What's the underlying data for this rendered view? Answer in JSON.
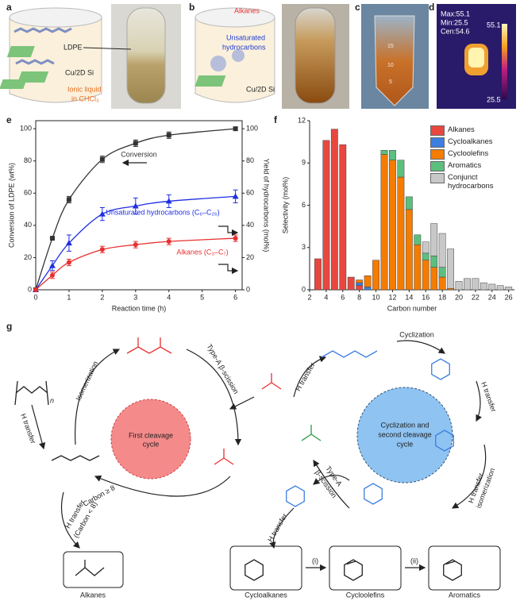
{
  "panels": {
    "a": {
      "letter": "a",
      "labels": [
        "LDPE",
        "Cu/2D Si"
      ],
      "ionic": [
        "Ionic liquid",
        "in CHCl₃"
      ]
    },
    "b": {
      "letter": "b",
      "alkanes": "Alkanes",
      "unsat": [
        "Unsaturated",
        "hydrocarbons"
      ],
      "cat": "Cu/2D Si"
    },
    "c": {
      "letter": "c",
      "marks": [
        "15",
        "10",
        "5"
      ]
    },
    "d": {
      "letter": "d",
      "readout": [
        "Max:55.1",
        "Min:25.5",
        "Cen:54.6"
      ],
      "scale": [
        "55.1",
        "25.5"
      ]
    },
    "e": {
      "letter": "e"
    },
    "f": {
      "letter": "f"
    }
  },
  "chart_data": [
    {
      "type": "line",
      "xlabel": "Reaction time (h)",
      "ylabel": "Conversion of LDPE (wt%)",
      "y2label": "Yield of hydrocarbons (mol%)",
      "x": [
        0,
        0.5,
        1,
        2,
        3,
        4,
        6
      ],
      "xlim": [
        0,
        6.2
      ],
      "xticks": [
        0,
        1,
        2,
        3,
        4,
        5,
        6
      ],
      "ylim": [
        0,
        105
      ],
      "yticks": [
        0,
        20,
        40,
        60,
        80,
        100
      ],
      "y2lim": [
        0,
        105
      ],
      "y2ticks": [
        0,
        20,
        40,
        60,
        80,
        100
      ],
      "series": [
        {
          "name": "Conversion",
          "color": "#333333",
          "marker": "square",
          "values": [
            0,
            32,
            56,
            81,
            91,
            96,
            100
          ],
          "errors": [
            0,
            1,
            2,
            2,
            2,
            2,
            1
          ]
        },
        {
          "name": "Unsaturated hydrocarbons (C₆–C₂₆)",
          "color": "#1f2fe0",
          "marker": "triangle",
          "axis": "y2",
          "values": [
            0,
            15,
            29,
            47,
            52,
            55,
            58
          ],
          "errors": [
            0,
            3,
            5,
            4,
            5,
            4,
            4
          ]
        },
        {
          "name": "Alkanes (C₃–C₇)",
          "color": "#e83030",
          "marker": "circle",
          "axis": "y2",
          "values": [
            0,
            9,
            17,
            25,
            28,
            30,
            32
          ],
          "errors": [
            0,
            2,
            2,
            2,
            2,
            2,
            2
          ]
        }
      ]
    },
    {
      "type": "bar",
      "stacked": true,
      "xlabel": "Carbon number",
      "ylabel": "Selectivity (mol%)",
      "legend": "upper right",
      "x": [
        3,
        4,
        5,
        6,
        7,
        8,
        9,
        10,
        11,
        12,
        13,
        14,
        15,
        16,
        17,
        18,
        19,
        20,
        21,
        22,
        23,
        24,
        25,
        26
      ],
      "xlim": [
        2,
        26.7
      ],
      "xticks": [
        2,
        4,
        6,
        8,
        10,
        12,
        14,
        16,
        18,
        20,
        22,
        24,
        26
      ],
      "ylim": [
        0,
        12
      ],
      "yticks": [
        0,
        3,
        6,
        9,
        12
      ],
      "series": [
        {
          "name": "Alkanes",
          "color": "#e8473f",
          "values": [
            2.2,
            10.6,
            11.4,
            10.3,
            0.9,
            0.3,
            0,
            0,
            0,
            0,
            0,
            0,
            0,
            0,
            0,
            0,
            0,
            0,
            0,
            0,
            0,
            0,
            0,
            0
          ]
        },
        {
          "name": "Cycloalkanes",
          "color": "#3d7fe0",
          "values": [
            0,
            0,
            0,
            0,
            0,
            0.2,
            0.2,
            0,
            0,
            0,
            0,
            0,
            0,
            0,
            0,
            0,
            0,
            0,
            0,
            0,
            0,
            0,
            0,
            0
          ]
        },
        {
          "name": "Cycloolefins",
          "color": "#f47c00",
          "values": [
            0,
            0,
            0,
            0,
            0,
            0.2,
            0.8,
            2.1,
            9.6,
            9.2,
            8.0,
            5.7,
            3.2,
            2.1,
            1.6,
            0.9,
            0.1,
            0,
            0,
            0,
            0,
            0,
            0,
            0
          ]
        },
        {
          "name": "Aromatics",
          "color": "#5cbf7e",
          "values": [
            0,
            0,
            0,
            0,
            0,
            0,
            0,
            0,
            0.3,
            0.7,
            1.2,
            0.9,
            0.7,
            0.5,
            0.8,
            0.7,
            0,
            0,
            0,
            0,
            0,
            0,
            0,
            0
          ]
        },
        {
          "name": "Conjunct hydrocarbons",
          "color": "#c8c8c8",
          "values": [
            0,
            0,
            0,
            0,
            0,
            0,
            0,
            0,
            0,
            0,
            0,
            0,
            0,
            0.8,
            2.3,
            2.4,
            2.8,
            0.6,
            0.8,
            0.8,
            0.5,
            0.4,
            0.3,
            0.2
          ]
        }
      ]
    }
  ],
  "scheme": {
    "letter": "g",
    "n": "n",
    "cycle1": [
      "First cleavage",
      "cycle"
    ],
    "cycle2": [
      "Cyclization and",
      "second cleavage",
      "cycle"
    ],
    "steps": [
      "Isomerization",
      "H transfer",
      "Type-A β-scission",
      "H transfer",
      "Cyclization",
      "H transfer",
      "Carbon ≥ 8",
      "H transfer"
    ],
    "cond": "(Carbon < 8)",
    "hiso": [
      "H transfer",
      "isomerization"
    ],
    "typea2": [
      "Type-A",
      "β-scission"
    ],
    "htr_low": "H transfer",
    "products": [
      "Alkanes",
      "Cycloalkanes",
      "Cycloolefins",
      "Aromatics"
    ],
    "conv": [
      "(i)",
      "(ii)"
    ]
  }
}
